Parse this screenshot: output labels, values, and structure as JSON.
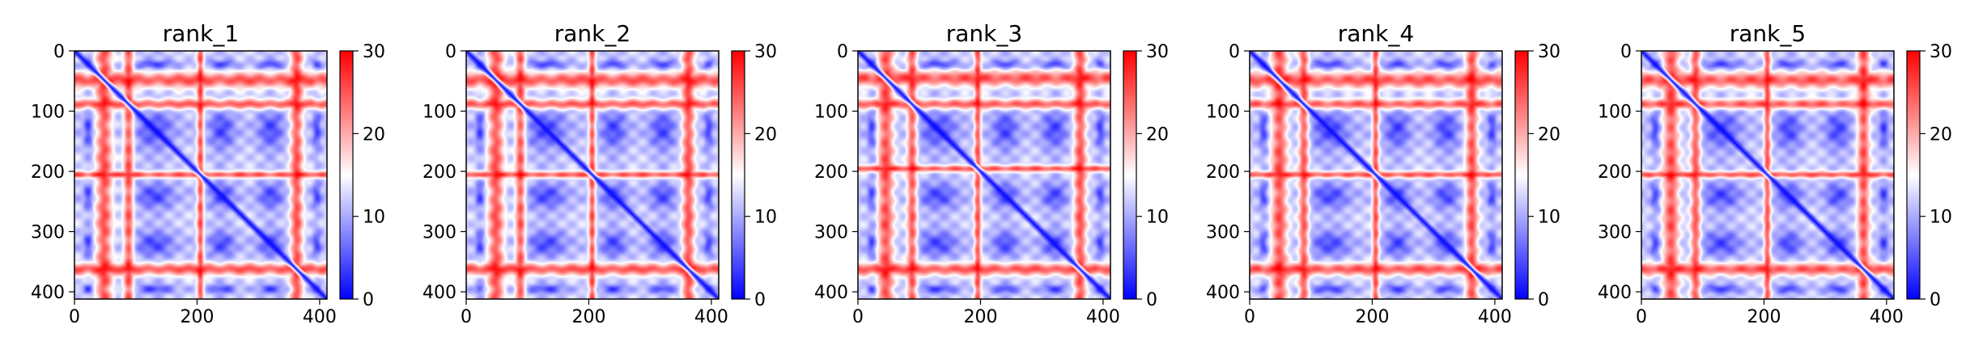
{
  "chart_data": [
    {
      "type": "heatmap",
      "title": "rank_1",
      "xlim": [
        0,
        412
      ],
      "ylim": [
        412,
        0
      ],
      "xticks": [
        0,
        200,
        400
      ],
      "yticks": [
        0,
        100,
        200,
        300,
        400
      ],
      "colorbar": {
        "range": [
          0,
          30
        ],
        "ticks": [
          0,
          10,
          20,
          30
        ],
        "colormap": "bwr"
      },
      "features": {
        "red_bands": [
          {
            "center": 48,
            "width": 28
          },
          {
            "center": 88,
            "width": 18
          },
          {
            "center": 205,
            "width": 12
          },
          {
            "center": 362,
            "width": 22
          }
        ],
        "blue_bands": [
          {
            "center": 22,
            "width": 14
          },
          {
            "center": 130,
            "width": 60
          },
          {
            "center": 240,
            "width": 40
          },
          {
            "center": 320,
            "width": 40
          },
          {
            "center": 395,
            "width": 14
          }
        ],
        "diagonal": "low"
      }
    },
    {
      "type": "heatmap",
      "title": "rank_2",
      "xlim": [
        0,
        412
      ],
      "ylim": [
        412,
        0
      ],
      "xticks": [
        0,
        200,
        400
      ],
      "yticks": [
        0,
        100,
        200,
        300,
        400
      ],
      "colorbar": {
        "range": [
          0,
          30
        ],
        "ticks": [
          0,
          10,
          20,
          30
        ],
        "colormap": "bwr"
      },
      "features": {
        "red_bands": [
          {
            "center": 48,
            "width": 28
          },
          {
            "center": 88,
            "width": 18
          },
          {
            "center": 205,
            "width": 12
          },
          {
            "center": 362,
            "width": 22
          }
        ],
        "blue_bands": [
          {
            "center": 22,
            "width": 14
          },
          {
            "center": 130,
            "width": 60
          },
          {
            "center": 240,
            "width": 40
          },
          {
            "center": 320,
            "width": 40
          },
          {
            "center": 395,
            "width": 14
          }
        ],
        "diagonal": "low"
      }
    },
    {
      "type": "heatmap",
      "title": "rank_3",
      "xlim": [
        0,
        412
      ],
      "ylim": [
        412,
        0
      ],
      "xticks": [
        0,
        200,
        400
      ],
      "yticks": [
        0,
        100,
        200,
        300,
        400
      ],
      "colorbar": {
        "range": [
          0,
          30
        ],
        "ticks": [
          0,
          10,
          20,
          30
        ],
        "colormap": "bwr"
      },
      "features": {
        "red_bands": [
          {
            "center": 45,
            "width": 28
          },
          {
            "center": 88,
            "width": 18
          },
          {
            "center": 195,
            "width": 12
          },
          {
            "center": 362,
            "width": 22
          }
        ],
        "blue_bands": [
          {
            "center": 22,
            "width": 14
          },
          {
            "center": 130,
            "width": 60
          },
          {
            "center": 240,
            "width": 40
          },
          {
            "center": 320,
            "width": 40
          },
          {
            "center": 395,
            "width": 14
          }
        ],
        "diagonal": "low"
      }
    },
    {
      "type": "heatmap",
      "title": "rank_4",
      "xlim": [
        0,
        412
      ],
      "ylim": [
        412,
        0
      ],
      "xticks": [
        0,
        200,
        400
      ],
      "yticks": [
        0,
        100,
        200,
        300,
        400
      ],
      "colorbar": {
        "range": [
          0,
          30
        ],
        "ticks": [
          0,
          10,
          20,
          30
        ],
        "colormap": "bwr"
      },
      "features": {
        "red_bands": [
          {
            "center": 48,
            "width": 28
          },
          {
            "center": 88,
            "width": 18
          },
          {
            "center": 205,
            "width": 12
          },
          {
            "center": 362,
            "width": 22
          }
        ],
        "blue_bands": [
          {
            "center": 22,
            "width": 14
          },
          {
            "center": 130,
            "width": 60
          },
          {
            "center": 240,
            "width": 40
          },
          {
            "center": 320,
            "width": 40
          },
          {
            "center": 395,
            "width": 14
          }
        ],
        "diagonal": "low"
      }
    },
    {
      "type": "heatmap",
      "title": "rank_5",
      "xlim": [
        0,
        412
      ],
      "ylim": [
        412,
        0
      ],
      "xticks": [
        0,
        200,
        400
      ],
      "yticks": [
        0,
        100,
        200,
        300,
        400
      ],
      "colorbar": {
        "range": [
          0,
          30
        ],
        "ticks": [
          0,
          10,
          20,
          30
        ],
        "colormap": "bwr"
      },
      "features": {
        "red_bands": [
          {
            "center": 48,
            "width": 28
          },
          {
            "center": 88,
            "width": 18
          },
          {
            "center": 205,
            "width": 12
          },
          {
            "center": 362,
            "width": 22
          }
        ],
        "blue_bands": [
          {
            "center": 22,
            "width": 14
          },
          {
            "center": 130,
            "width": 60
          },
          {
            "center": 240,
            "width": 40
          },
          {
            "center": 320,
            "width": 40
          },
          {
            "center": 395,
            "width": 14
          }
        ],
        "diagonal": "low"
      }
    }
  ]
}
